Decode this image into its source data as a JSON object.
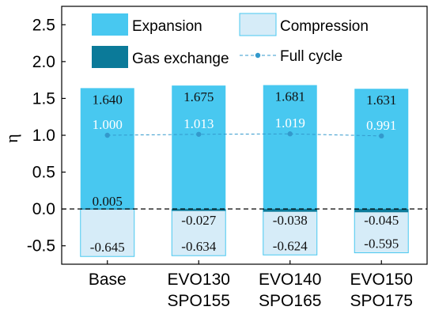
{
  "chart_data": {
    "type": "bar",
    "categories": [
      [
        "Base"
      ],
      [
        "EVO130",
        "SPO155"
      ],
      [
        "EVO140",
        "SPO165"
      ],
      [
        "EVO150",
        "SPO175"
      ]
    ],
    "ylabel": "η",
    "ylim": [
      -0.75,
      2.75
    ],
    "yticks": [
      "-0.5",
      "0.0",
      "0.5",
      "1.0",
      "1.5",
      "2.0",
      "2.5"
    ],
    "grid": false,
    "legend_position": "top",
    "series": [
      {
        "name": "Expansion",
        "kind": "bar",
        "values": [
          1.64,
          1.675,
          1.681,
          1.631
        ],
        "labels": [
          "1.640",
          "1.675",
          "1.681",
          "1.631"
        ],
        "color": "#48C8F0"
      },
      {
        "name": "Compression",
        "kind": "bar",
        "values": [
          -0.645,
          -0.634,
          -0.624,
          -0.595
        ],
        "labels": [
          "-0.645",
          "-0.634",
          "-0.624",
          "-0.595"
        ],
        "color": "#D6ECF8",
        "edge": "#48C8F0"
      },
      {
        "name": "Gas exchange",
        "kind": "bar",
        "values": [
          0.005,
          -0.027,
          -0.038,
          -0.045
        ],
        "labels": [
          "0.005",
          "-0.027",
          "-0.038",
          "-0.045"
        ],
        "color": "#0B7A99"
      },
      {
        "name": "Full cycle",
        "kind": "line",
        "values": [
          1.0,
          1.013,
          1.019,
          0.991
        ],
        "labels": [
          "1.000",
          "1.013",
          "1.019",
          "0.991"
        ],
        "color": "#3399CC"
      }
    ]
  }
}
